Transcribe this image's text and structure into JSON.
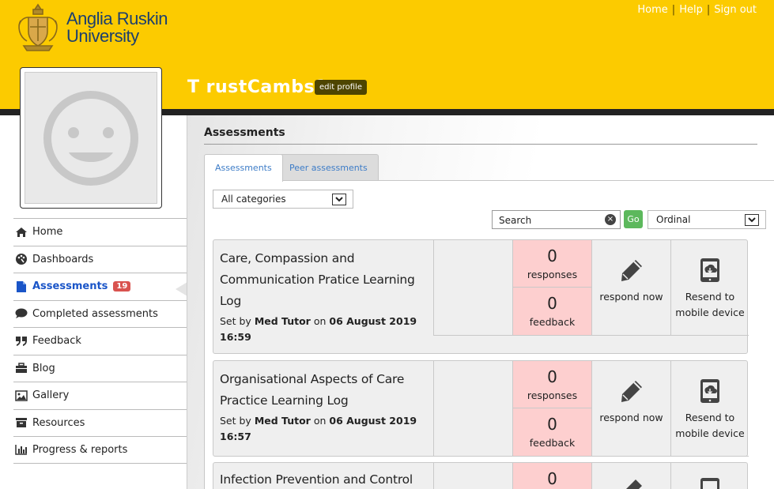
{
  "brand": {
    "name_line1": "Anglia Ruskin",
    "name_line2": "University",
    "primary_color": "#fccb00",
    "text_color": "#1c3f6e"
  },
  "toplinks": [
    {
      "label": "Home"
    },
    {
      "label": "Help"
    },
    {
      "label": "Sign out"
    }
  ],
  "profile": {
    "username": "T rustCambs1",
    "edit_label": "edit profile"
  },
  "sidebar": {
    "items": [
      {
        "label": "Home",
        "icon": "home-icon"
      },
      {
        "label": "Dashboards",
        "icon": "dashboard-icon"
      },
      {
        "label": "Assessments",
        "icon": "document-icon",
        "badge": "19",
        "active": true
      },
      {
        "label": "Completed assessments",
        "icon": "comment-icon"
      },
      {
        "label": "Feedback",
        "icon": "quote-icon"
      },
      {
        "label": "Blog",
        "icon": "briefcase-icon"
      },
      {
        "label": "Gallery",
        "icon": "image-icon"
      },
      {
        "label": "Resources",
        "icon": "archive-icon"
      },
      {
        "label": "Progress & reports",
        "icon": "bar-chart-icon"
      }
    ]
  },
  "main": {
    "title": "Assessments",
    "tabs": [
      {
        "label": "Assessments",
        "active": true
      },
      {
        "label": "Peer assessments",
        "active": false
      }
    ],
    "filters": {
      "category_value": "All categories",
      "search_placeholder": "Search",
      "go_label": "Go",
      "order_value": "Ordinal"
    },
    "cards": [
      {
        "title": "Care, Compassion and Communication Pratice Learning Log",
        "set_by_prefix": "Set by",
        "set_by": "Med Tutor",
        "on_word": "on",
        "date": "06 August 2019",
        "time": "16:59",
        "responses": "0",
        "responses_label": "responses",
        "feedback": "0",
        "feedback_label": "feedback",
        "respond_label": "respond now",
        "resend_label": "Resend to mobile device"
      },
      {
        "title": "Organisational Aspects of Care Practice Learning Log",
        "set_by_prefix": "Set by",
        "set_by": "Med Tutor",
        "on_word": "on",
        "date": "06 August 2019",
        "time": "16:57",
        "responses": "0",
        "responses_label": "responses",
        "feedback": "0",
        "feedback_label": "feedback",
        "respond_label": "respond now",
        "resend_label": "Resend to mobile device"
      },
      {
        "title": "Infection Prevention and Control",
        "responses": "0"
      }
    ]
  }
}
